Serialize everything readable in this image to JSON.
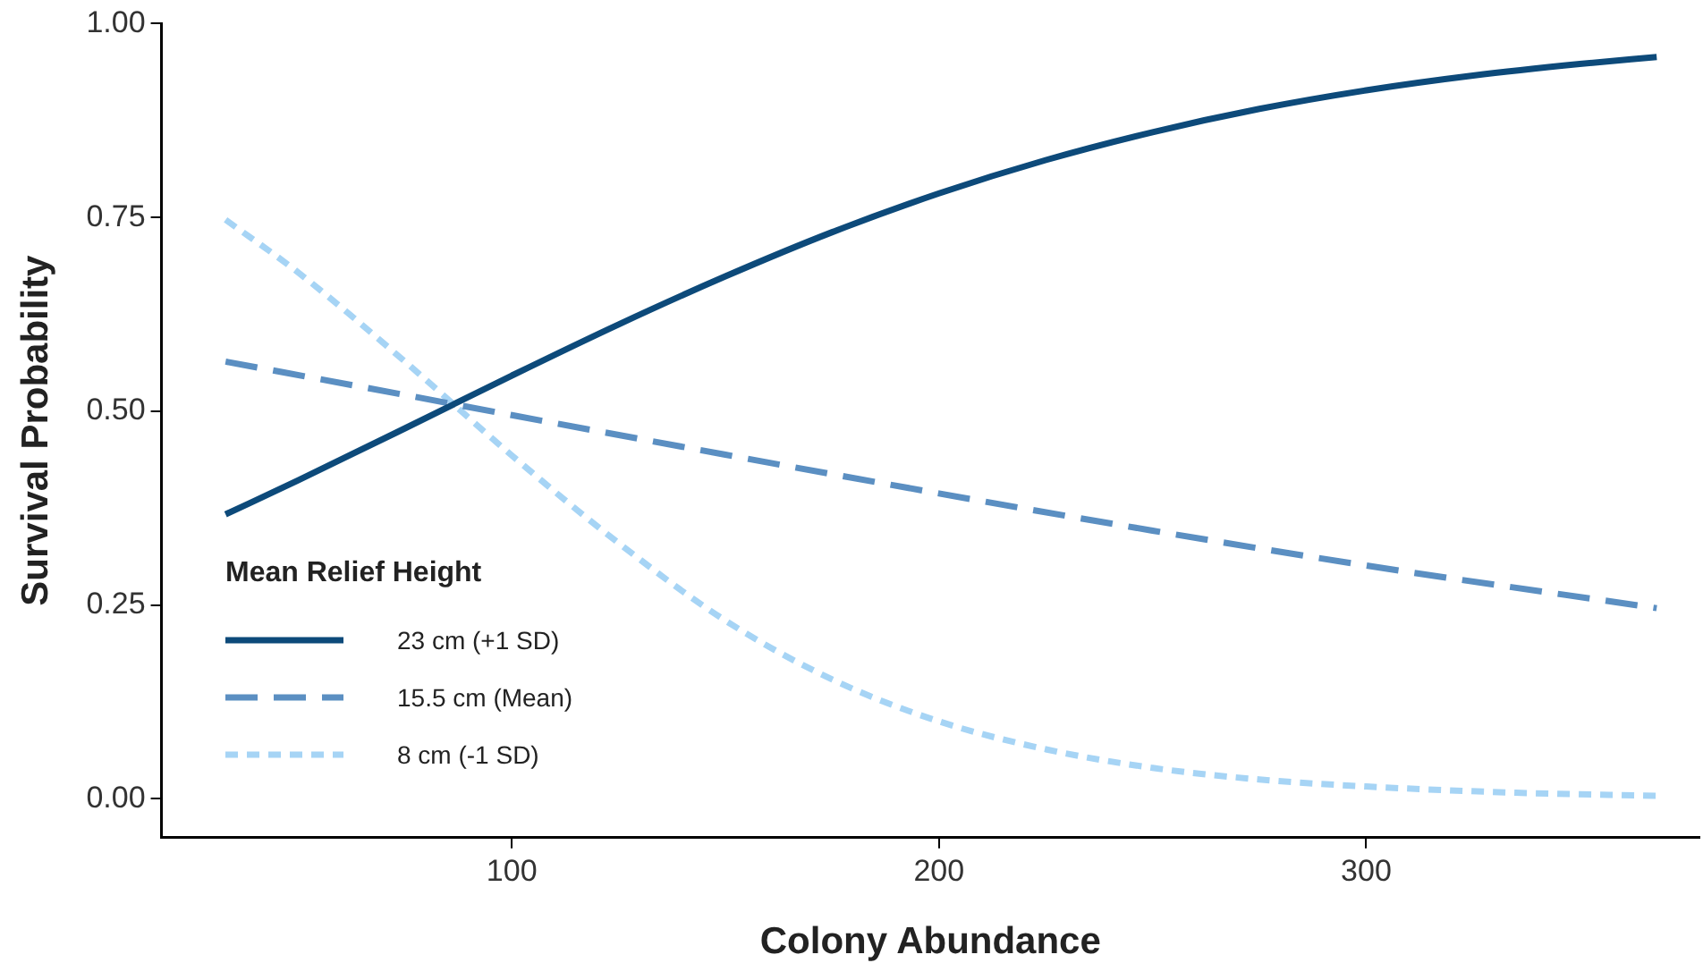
{
  "chart_data": {
    "type": "line",
    "xlabel": "Colony Abundance",
    "ylabel": "Survival Probability",
    "legend_title": "Mean Relief Height",
    "legend": "bottom left",
    "grid": false,
    "marker": "none",
    "xlim": [
      18,
      378
    ],
    "xticks": [
      100,
      200,
      300
    ],
    "ylim": [
      -0.05,
      1.0
    ],
    "yticks": [
      {
        "value": 0,
        "label": "0.00"
      },
      {
        "value": 0.25,
        "label": "0.25"
      },
      {
        "value": 0.5,
        "label": "0.50"
      },
      {
        "value": 0.75,
        "label": "0.75"
      },
      {
        "value": 1,
        "label": "1.00"
      }
    ],
    "series": [
      {
        "name": "23 cm (+1 SD)",
        "color": "#0d4a7a",
        "line_style": "solid",
        "x": [
          33,
          50,
          75,
          100,
          125,
          150,
          175,
          200,
          225,
          250,
          275,
          300,
          325,
          350,
          368
        ],
        "values": [
          0.367,
          0.411,
          0.478,
          0.546,
          0.612,
          0.674,
          0.731,
          0.781,
          0.824,
          0.86,
          0.89,
          0.914,
          0.933,
          0.948,
          0.957
        ]
      },
      {
        "name": "15.5 cm (Mean)",
        "color": "#5b8fc2",
        "line_style": "dashed",
        "x": [
          33,
          75,
          100,
          150,
          200,
          250,
          300,
          368
        ],
        "values": [
          0.564,
          0.521,
          0.495,
          0.444,
          0.394,
          0.346,
          0.301,
          0.246
        ]
      },
      {
        "name": "8 cm (-1 SD)",
        "color": "#a6d4f5",
        "line_style": "dotted",
        "x": [
          33,
          50,
          75,
          100,
          125,
          150,
          175,
          200,
          225,
          250,
          275,
          300,
          335,
          368
        ],
        "values": [
          0.747,
          0.679,
          0.564,
          0.443,
          0.33,
          0.23,
          0.154,
          0.1,
          0.064,
          0.04,
          0.025,
          0.016,
          0.008,
          0.004
        ]
      }
    ]
  }
}
